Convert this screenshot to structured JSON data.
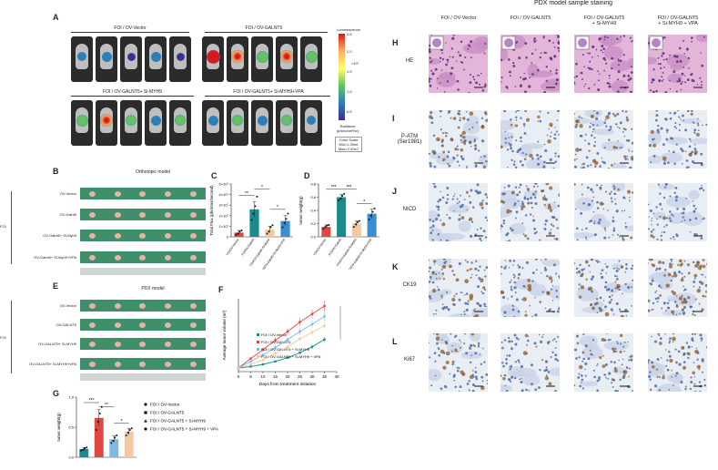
{
  "panels": {
    "A": "A",
    "B": "B",
    "C": "C",
    "D": "D",
    "E": "E",
    "F": "F",
    "G": "G",
    "H": "H",
    "I": "I",
    "J": "J",
    "K": "K",
    "L": "L"
  },
  "panelA": {
    "groups": [
      "FOI / OV-Vector",
      "FOI / OV-GALNT5",
      "FOI / OV-GALNT5+ Si-MYH9",
      "FOI / OV-GALNT5+ Si-MYH9+VPA"
    ],
    "colorbar_title": "Luminescence",
    "colorbar_ticks": [
      "2.5",
      "2.0",
      "1.5",
      "1.0",
      "0.5"
    ],
    "colorbar_exp": "×10⁷",
    "colorbar_unit": "Radiance (p/sec/cm²/sr)",
    "colorbar_scale": "Color Scale Min=1.00e6 Max=2.50e7"
  },
  "panelB": {
    "title": "Orthotopic model",
    "side_label": "FOI",
    "rows": [
      "OV-Vector",
      "OV-Galnt5",
      "OV-Galnt5+ Si-Myh9",
      "OV-Galnt5+ Si-Myh9+VPA"
    ]
  },
  "panelE": {
    "title": "PDX model",
    "side_label": "FOI",
    "rows": [
      "OV-Vector",
      "OV-GALNT5",
      "OV-GALNT5+ Si-MYH9",
      "OV-GALNT5+ Si-MYH9+VPA"
    ]
  },
  "chart_data": [
    {
      "id": "C",
      "type": "bar",
      "ylabel": "Total Flux (photons/second)",
      "yticks": [
        "0",
        "1×10⁷",
        "2×10⁷",
        "3×10⁷",
        "4×10⁷",
        "5×10⁷"
      ],
      "ylim": [
        0,
        5
      ],
      "categories": [
        "FOI/OV-Vector",
        "FOI/OV-Galnt5",
        "FOI/OV-Galnt5+Si-Myh9",
        "FOI/OV-Galnt5+Si-Myh9+VPA"
      ],
      "values": [
        0.4,
        2.6,
        0.7,
        1.5
      ],
      "errors": [
        0.2,
        0.7,
        0.3,
        0.5
      ],
      "colors": [
        "#e0473f",
        "#1b8a8c",
        "#f2c9a0",
        "#3a8fd0"
      ],
      "points": [
        [
          0.2,
          0.3,
          0.5,
          0.6
        ],
        [
          1.6,
          2.2,
          2.9,
          3.8
        ],
        [
          0.3,
          0.5,
          0.9,
          1.1
        ],
        [
          0.9,
          1.3,
          1.7,
          2.2
        ]
      ],
      "sig": [
        {
          "a": 0,
          "b": 1,
          "label": "**",
          "level": 3.9
        },
        {
          "a": 1,
          "b": 2,
          "label": "*",
          "level": 4.5
        },
        {
          "a": 2,
          "b": 3,
          "label": "*",
          "level": 2.6
        }
      ]
    },
    {
      "id": "D",
      "type": "bar",
      "ylabel": "tumor weight(g)",
      "yticks": [
        "0.0",
        "0.2",
        "0.4",
        "0.6",
        "0.8"
      ],
      "ylim": [
        0,
        0.8
      ],
      "categories": [
        "FOI/OV-Vector",
        "FOI/OV-Galnt5",
        "FOI/OV-Galnt5+Si-Myh9",
        "FOI/OV-Galnt5+Si-Myh9+VPA"
      ],
      "values": [
        0.15,
        0.6,
        0.2,
        0.35
      ],
      "errors": [
        0.03,
        0.04,
        0.04,
        0.07
      ],
      "colors": [
        "#e0473f",
        "#1b8a8c",
        "#f2c9a0",
        "#3a8fd0"
      ],
      "points": [
        [
          0.12,
          0.15,
          0.17,
          0.18
        ],
        [
          0.55,
          0.58,
          0.62,
          0.65
        ],
        [
          0.15,
          0.19,
          0.22,
          0.24
        ],
        [
          0.26,
          0.32,
          0.38,
          0.43
        ]
      ],
      "sig": [
        {
          "a": 0,
          "b": 1,
          "label": "***",
          "level": 0.72
        },
        {
          "a": 1,
          "b": 2,
          "label": "***",
          "level": 0.72
        },
        {
          "a": 2,
          "b": 3,
          "label": "*",
          "level": 0.5
        }
      ]
    },
    {
      "id": "F",
      "type": "line",
      "xlabel": "Days from treatment initiation",
      "ylabel": "Average tumor volume (m³)",
      "x": [
        0,
        5,
        10,
        15,
        20,
        25,
        30,
        35
      ],
      "xticks": [
        0,
        5,
        10,
        15,
        20,
        25,
        30,
        35,
        40
      ],
      "xlim": [
        0,
        40
      ],
      "ylim": [
        0,
        1.0
      ],
      "series": [
        {
          "name": "FOI / OV-Vector",
          "color": "#1b8a8c",
          "values": [
            0.05,
            0.07,
            0.1,
            0.14,
            0.19,
            0.26,
            0.34,
            0.44
          ]
        },
        {
          "name": "FOI / OV-GALNT5",
          "color": "#e0473f",
          "values": [
            0.05,
            0.18,
            0.3,
            0.43,
            0.55,
            0.68,
            0.79,
            0.9
          ]
        },
        {
          "name": "FOI / OV-GALNT5 + Si-MYH9",
          "color": "#7fb8e0",
          "values": [
            0.05,
            0.14,
            0.23,
            0.33,
            0.44,
            0.55,
            0.65,
            0.76
          ]
        },
        {
          "name": "FOI / OV-GALNT5 + Si-MYH9 + VPA",
          "color": "#f2c9a0",
          "values": [
            0.05,
            0.1,
            0.16,
            0.25,
            0.34,
            0.45,
            0.54,
            0.63
          ]
        }
      ]
    },
    {
      "id": "G",
      "type": "bar",
      "ylabel": "tumor weight(g)",
      "yticks": [
        "0.0",
        "0.5",
        "1.0"
      ],
      "ylim": [
        0,
        1.1
      ],
      "categories": [
        "FOI / OV-Vector",
        "FOI / OV-GALNT5",
        "FOI / OV-GALNT5 + Si-MYH9",
        "FOI / OV-GALNT5 + Si-MYH9 + VPA"
      ],
      "values": [
        0.15,
        0.72,
        0.33,
        0.47
      ],
      "errors": [
        0.03,
        0.15,
        0.06,
        0.06
      ],
      "colors": [
        "#1b8a8c",
        "#e0473f",
        "#7fb8e0",
        "#f2c9a0"
      ],
      "points": [
        [
          0.12,
          0.14,
          0.16,
          0.18
        ],
        [
          0.5,
          0.65,
          0.8,
          0.92
        ],
        [
          0.26,
          0.3,
          0.36,
          0.4
        ],
        [
          0.4,
          0.45,
          0.5,
          0.53
        ]
      ],
      "sig": [
        {
          "a": 0,
          "b": 1,
          "label": "***",
          "level": 1.0
        },
        {
          "a": 1,
          "b": 2,
          "label": "**",
          "level": 0.92
        },
        {
          "a": 2,
          "b": 3,
          "label": "*",
          "level": 0.62
        }
      ]
    }
  ],
  "staining": {
    "title": "PDX model sample staining",
    "columns": [
      "FOI / OV-Vector",
      "FOI / OV-GALNT5",
      "FOI / OV-GALNT5\n+ Si-MYH9",
      "FOI / OV-GALNT5\n+ Si-MYH9 + VPA"
    ],
    "rows": [
      {
        "panel": "H",
        "label": "HE",
        "kind": "he"
      },
      {
        "panel": "I",
        "label": "P-ATM\n(Ser1981)",
        "kind": "ihc"
      },
      {
        "panel": "J",
        "label": "NICD",
        "kind": "ihc"
      },
      {
        "panel": "K",
        "label": "CK19",
        "kind": "ihc"
      },
      {
        "panel": "L",
        "label": "Ki67",
        "kind": "ihc"
      }
    ],
    "intensity": [
      [
        0.2,
        0.3,
        0.25,
        0.35
      ],
      [
        0.45,
        0.2,
        0.5,
        0.15
      ],
      [
        0.1,
        0.45,
        0.15,
        0.05
      ],
      [
        0.55,
        0.3,
        0.4,
        0.85
      ],
      [
        0.3,
        0.2,
        0.35,
        0.45
      ]
    ]
  }
}
